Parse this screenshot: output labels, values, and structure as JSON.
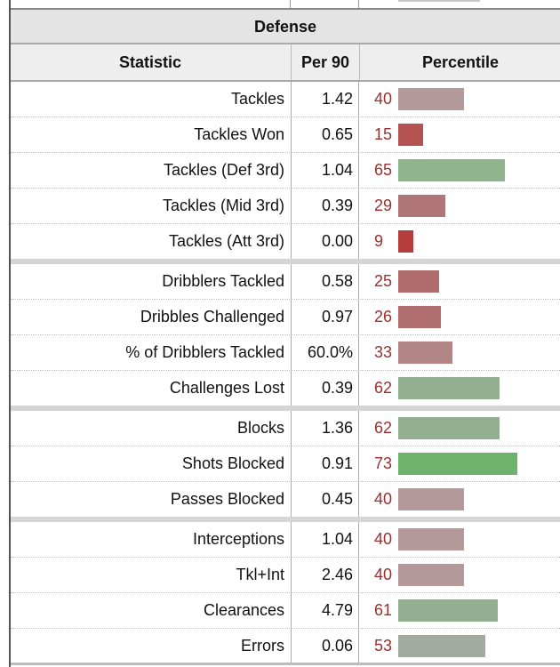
{
  "section_title": "Defense",
  "columns": {
    "statistic": "Statistic",
    "per90": "Per 90",
    "percentile": "Percentile"
  },
  "groups": [
    [
      {
        "stat": "Tackles",
        "per90": "1.42",
        "percentile": 40,
        "bar_color": "#b59a9c"
      },
      {
        "stat": "Tackles Won",
        "per90": "0.65",
        "percentile": 15,
        "bar_color": "#b55352"
      },
      {
        "stat": "Tackles (Def 3rd)",
        "per90": "1.04",
        "percentile": 65,
        "bar_color": "#8fb48e"
      },
      {
        "stat": "Tackles (Mid 3rd)",
        "per90": "0.39",
        "percentile": 29,
        "bar_color": "#b07576"
      },
      {
        "stat": "Tackles (Att 3rd)",
        "per90": "0.00",
        "percentile": 9,
        "bar_color": "#b43c3c"
      }
    ],
    [
      {
        "stat": "Dribblers Tackled",
        "per90": "0.58",
        "percentile": 25,
        "bar_color": "#b06c6d"
      },
      {
        "stat": "Dribbles Challenged",
        "per90": "0.97",
        "percentile": 26,
        "bar_color": "#b06e6f"
      },
      {
        "stat": "% of Dribblers Tackled",
        "per90": "60.0%",
        "percentile": 33,
        "bar_color": "#b28586"
      },
      {
        "stat": "Challenges Lost",
        "per90": "0.39",
        "percentile": 62,
        "bar_color": "#92b090"
      }
    ],
    [
      {
        "stat": "Blocks",
        "per90": "1.36",
        "percentile": 62,
        "bar_color": "#92b090"
      },
      {
        "stat": "Shots Blocked",
        "per90": "0.91",
        "percentile": 73,
        "bar_color": "#6db36c"
      },
      {
        "stat": "Passes Blocked",
        "per90": "0.45",
        "percentile": 40,
        "bar_color": "#b59a9c"
      }
    ],
    [
      {
        "stat": "Interceptions",
        "per90": "1.04",
        "percentile": 40,
        "bar_color": "#b59a9c"
      },
      {
        "stat": "Tkl+Int",
        "per90": "2.46",
        "percentile": 40,
        "bar_color": "#b59a9c"
      },
      {
        "stat": "Clearances",
        "per90": "4.79",
        "percentile": 61,
        "bar_color": "#94ae92"
      },
      {
        "stat": "Errors",
        "per90": "0.06",
        "percentile": 53,
        "bar_color": "#a2aba2"
      }
    ]
  ]
}
